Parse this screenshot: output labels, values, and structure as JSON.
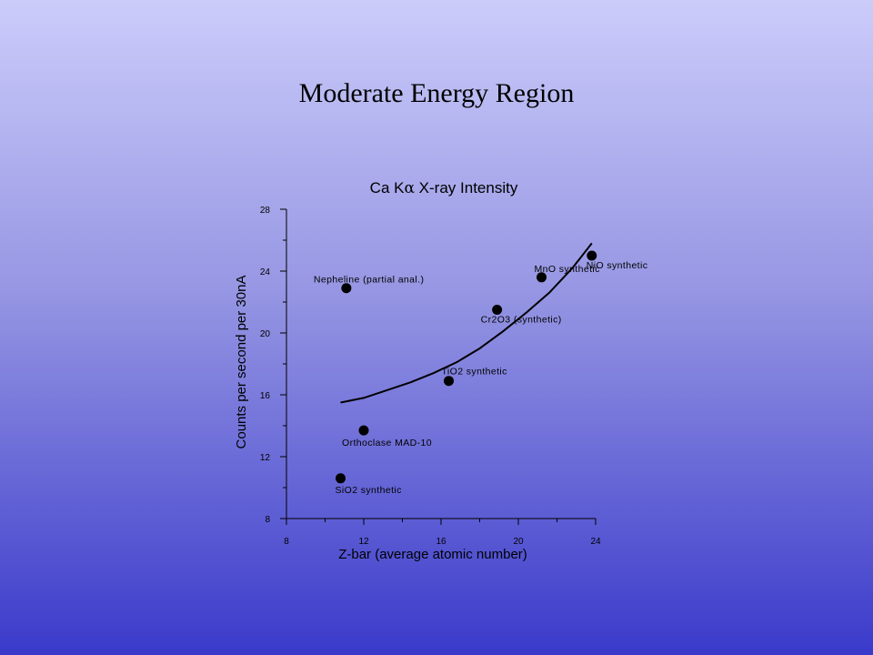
{
  "slide": {
    "title": "Moderate Energy Region"
  },
  "chart_data": {
    "type": "scatter",
    "title_prefix": "Ca K",
    "title_symbol": "α",
    "title_suffix": " X-ray Intensity",
    "xlabel": "Z-bar (average atomic number)",
    "ylabel": "Counts per second per 30nA",
    "xlim": [
      8,
      24
    ],
    "ylim": [
      8,
      28
    ],
    "x_ticks": [
      8,
      12,
      16,
      20,
      24
    ],
    "y_ticks": [
      8,
      12,
      16,
      20,
      24,
      28
    ],
    "grid": false,
    "points": [
      {
        "label": "SiO2 synthetic",
        "x": 10.8,
        "y": 10.6
      },
      {
        "label": "Orthoclase MAD-10",
        "x": 12.0,
        "y": 13.7
      },
      {
        "label": "Nepheline (partial anal.)",
        "x": 11.1,
        "y": 22.9
      },
      {
        "label": "TiO2 synthetic",
        "x": 16.4,
        "y": 16.9
      },
      {
        "label": "Cr2O3 (synthetic)",
        "x": 18.9,
        "y": 21.5
      },
      {
        "label": "MnO synthetic",
        "x": 21.2,
        "y": 23.6
      },
      {
        "label": "NiO synthetic",
        "x": 23.8,
        "y": 25.0
      }
    ],
    "fit_curve": {
      "x": [
        10.8,
        12.0,
        13.2,
        14.4,
        15.6,
        16.8,
        18.0,
        19.2,
        20.4,
        21.6,
        22.8,
        23.8
      ],
      "y": [
        15.5,
        15.8,
        16.3,
        16.8,
        17.4,
        18.1,
        19.0,
        20.1,
        21.3,
        22.6,
        24.2,
        25.8
      ]
    }
  }
}
